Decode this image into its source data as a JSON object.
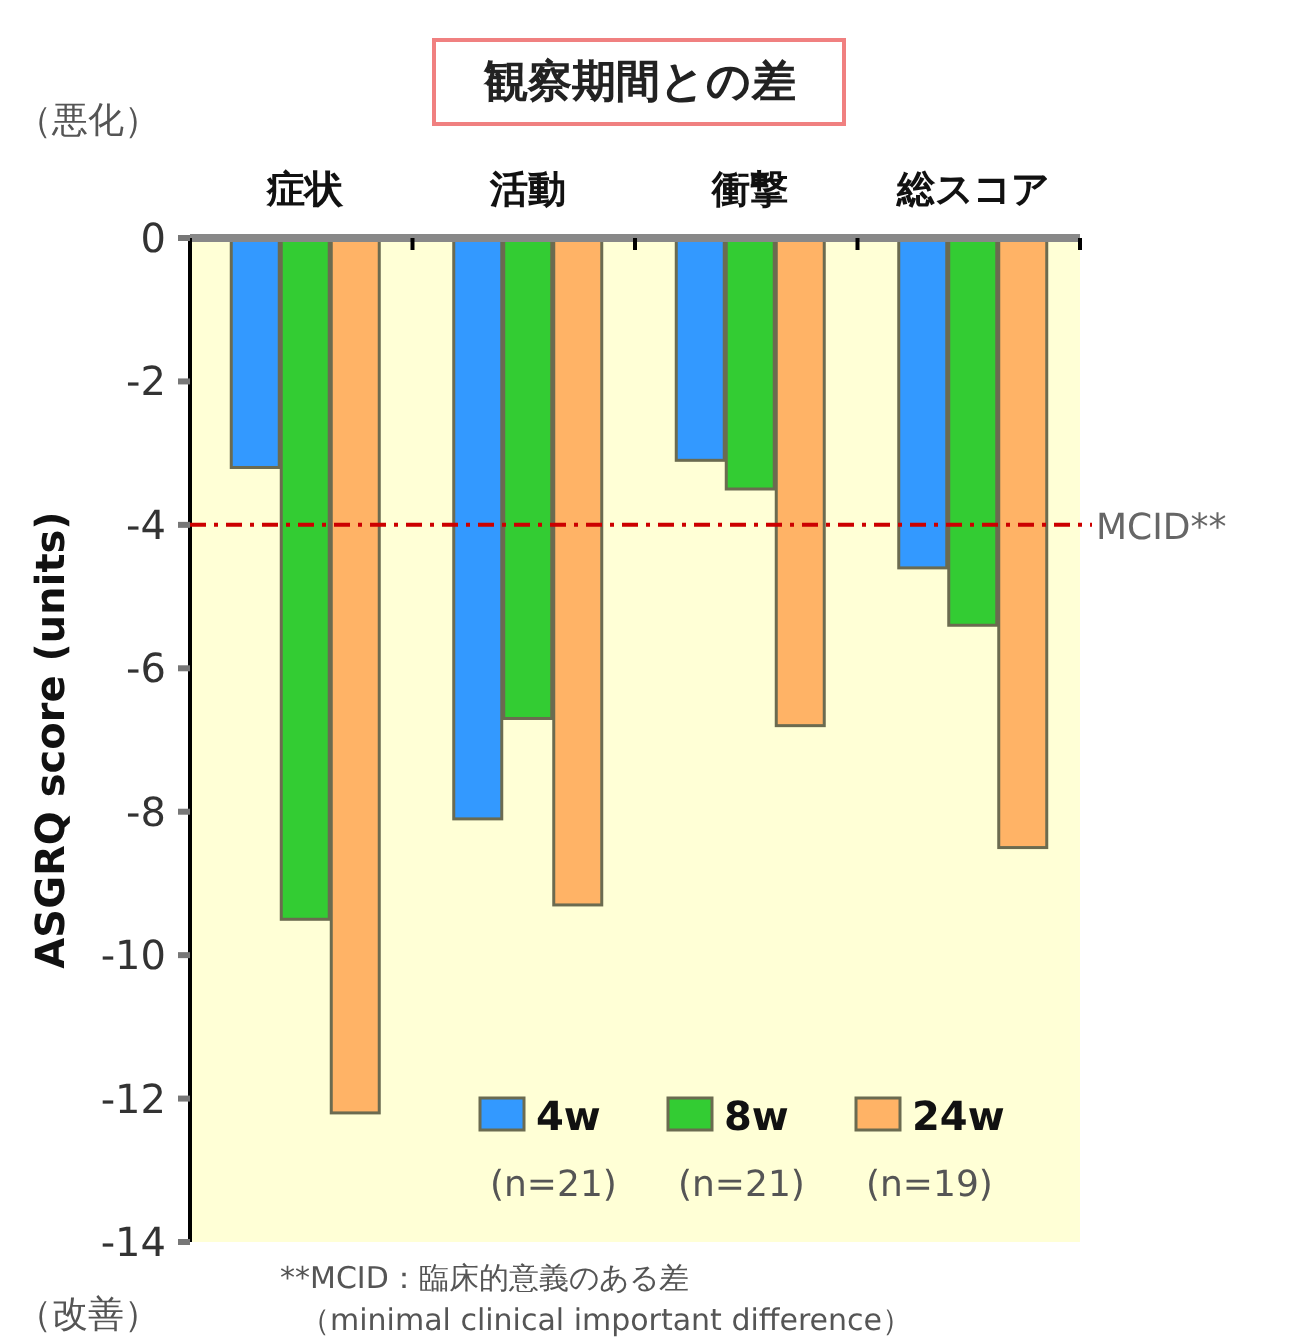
{
  "chart_data": {
    "type": "bar",
    "title": "観察期間との差",
    "ylabel": "ASGRQ score (units)",
    "categories": [
      "症状",
      "活動",
      "衝撃",
      "総スコア"
    ],
    "series": [
      {
        "name": "4w",
        "color": "#3399ff",
        "values": [
          -3.2,
          -8.1,
          -3.1,
          -4.6
        ]
      },
      {
        "name": "8w",
        "color": "#33cc33",
        "values": [
          -9.5,
          -6.7,
          -3.5,
          -5.4
        ]
      },
      {
        "name": "24w",
        "color": "#ffb366",
        "values": [
          -12.2,
          -9.3,
          -6.8,
          -8.5
        ]
      }
    ],
    "ylim": [
      -14,
      0
    ],
    "yticks": [
      0,
      -2,
      -4,
      -6,
      -8,
      -10,
      -12,
      -14
    ],
    "ref_lines": [
      {
        "axis": "y",
        "value": -4,
        "label": "MCID**",
        "color": "#cc0000",
        "line_style": "dashed"
      }
    ],
    "legend": "bottom right",
    "grid": false,
    "annotations": [
      "（悪化）",
      "（改善）",
      "(n=21)",
      "(n=21)",
      "(n=19)",
      "**MCID：臨床的意義のある差",
      "（minimal clinical important difference）"
    ]
  }
}
